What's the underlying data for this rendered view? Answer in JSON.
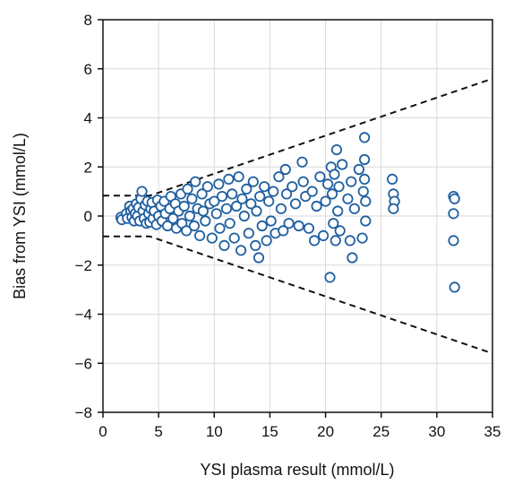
{
  "chart_data": {
    "type": "scatter",
    "title": "",
    "xlabel": "YSI plasma result (mmol/L)",
    "ylabel": "Bias from YSI (mmol/L)",
    "xlim": [
      0,
      35
    ],
    "ylim": [
      -8,
      8
    ],
    "x_ticks": [
      0,
      5,
      10,
      15,
      20,
      25,
      30,
      35
    ],
    "y_ticks": [
      -8,
      -6,
      -4,
      -2,
      0,
      2,
      4,
      6,
      8
    ],
    "x_tick_labels": [
      "0",
      "5",
      "10",
      "15",
      "20",
      "25",
      "30",
      "35"
    ],
    "y_tick_labels": [
      "−8",
      "−6",
      "−4",
      "−2",
      "0",
      "2",
      "4",
      "6",
      "8"
    ],
    "grid": true,
    "colors": {
      "marker_edge": "#1f5fa0",
      "marker_fill": "#ffffff",
      "grid": "#d9d9d9",
      "limit_line": "#111111",
      "axis": "#111111"
    },
    "limit_lines": {
      "style": "dashed",
      "upper": [
        [
          0,
          0.83
        ],
        [
          4.2,
          0.83
        ],
        [
          35,
          5.6
        ]
      ],
      "lower": [
        [
          0,
          -0.83
        ],
        [
          4.2,
          -0.83
        ],
        [
          35,
          -5.6
        ]
      ]
    },
    "series": [
      {
        "marker": "open-circle",
        "points": [
          [
            1.6,
            -0.05
          ],
          [
            1.7,
            -0.15
          ],
          [
            2.1,
            0.1
          ],
          [
            2.2,
            -0.1
          ],
          [
            2.4,
            0.4
          ],
          [
            2.5,
            0.2
          ],
          [
            2.6,
            -0.05
          ],
          [
            2.7,
            0.3
          ],
          [
            2.8,
            -0.2
          ],
          [
            2.9,
            0.1
          ],
          [
            3.0,
            0.5
          ],
          [
            3.1,
            0.0
          ],
          [
            3.2,
            0.35
          ],
          [
            3.3,
            -0.2
          ],
          [
            3.4,
            0.7
          ],
          [
            3.5,
            1.0
          ],
          [
            3.6,
            0.2
          ],
          [
            3.7,
            -0.1
          ],
          [
            3.8,
            0.45
          ],
          [
            3.9,
            -0.3
          ],
          [
            4.0,
            0.6
          ],
          [
            4.1,
            0.1
          ],
          [
            4.2,
            -0.25
          ],
          [
            4.3,
            0.3
          ],
          [
            4.4,
            0.55
          ],
          [
            4.5,
            -0.1
          ],
          [
            4.6,
            0.2
          ],
          [
            4.8,
            -0.35
          ],
          [
            4.9,
            0.65
          ],
          [
            5.0,
            0.0
          ],
          [
            5.2,
            0.4
          ],
          [
            5.3,
            -0.2
          ],
          [
            5.5,
            0.6
          ],
          [
            5.6,
            0.1
          ],
          [
            5.8,
            -0.4
          ],
          [
            6.0,
            0.3
          ],
          [
            6.1,
            0.8
          ],
          [
            6.3,
            -0.1
          ],
          [
            6.5,
            0.5
          ],
          [
            6.6,
            -0.5
          ],
          [
            6.8,
            0.2
          ],
          [
            7.0,
            0.9
          ],
          [
            7.1,
            -0.3
          ],
          [
            7.3,
            0.4
          ],
          [
            7.5,
            -0.6
          ],
          [
            7.6,
            1.1
          ],
          [
            7.8,
            0.0
          ],
          [
            8.0,
            0.7
          ],
          [
            8.2,
            -0.4
          ],
          [
            8.3,
            1.4
          ],
          [
            8.5,
            0.3
          ],
          [
            8.7,
            -0.8
          ],
          [
            8.9,
            0.9
          ],
          [
            9.0,
            0.2
          ],
          [
            9.2,
            -0.2
          ],
          [
            9.4,
            1.2
          ],
          [
            9.6,
            0.5
          ],
          [
            9.8,
            -0.9
          ],
          [
            10.0,
            0.6
          ],
          [
            10.2,
            0.1
          ],
          [
            10.4,
            1.3
          ],
          [
            10.5,
            -0.5
          ],
          [
            10.7,
            0.8
          ],
          [
            10.9,
            -1.2
          ],
          [
            11.1,
            0.3
          ],
          [
            11.3,
            1.5
          ],
          [
            11.4,
            -0.3
          ],
          [
            11.6,
            0.9
          ],
          [
            11.8,
            -0.9
          ],
          [
            12.0,
            0.4
          ],
          [
            12.2,
            1.6
          ],
          [
            12.4,
            -1.4
          ],
          [
            12.5,
            0.7
          ],
          [
            12.7,
            0.0
          ],
          [
            12.9,
            1.1
          ],
          [
            13.1,
            -0.7
          ],
          [
            13.3,
            0.5
          ],
          [
            13.5,
            1.4
          ],
          [
            13.7,
            -1.2
          ],
          [
            13.8,
            0.2
          ],
          [
            14.0,
            -1.7
          ],
          [
            14.1,
            0.8
          ],
          [
            14.3,
            -0.4
          ],
          [
            14.5,
            1.2
          ],
          [
            14.7,
            -1.0
          ],
          [
            14.9,
            0.6
          ],
          [
            15.1,
            -0.2
          ],
          [
            15.3,
            1.0
          ],
          [
            15.5,
            -0.7
          ],
          [
            15.8,
            1.6
          ],
          [
            16.0,
            0.3
          ],
          [
            16.2,
            -0.6
          ],
          [
            16.4,
            1.9
          ],
          [
            16.5,
            0.9
          ],
          [
            16.7,
            -0.3
          ],
          [
            17.0,
            1.2
          ],
          [
            17.3,
            0.5
          ],
          [
            17.6,
            -0.4
          ],
          [
            17.9,
            2.2
          ],
          [
            18.0,
            1.4
          ],
          [
            18.2,
            0.8
          ],
          [
            18.5,
            -0.5
          ],
          [
            18.8,
            1.0
          ],
          [
            19.0,
            -1.0
          ],
          [
            19.2,
            0.4
          ],
          [
            19.5,
            1.6
          ],
          [
            19.8,
            -0.8
          ],
          [
            20.0,
            0.6
          ],
          [
            20.2,
            1.3
          ],
          [
            20.4,
            -2.5
          ],
          [
            20.5,
            2.0
          ],
          [
            20.6,
            0.9
          ],
          [
            20.7,
            -0.3
          ],
          [
            20.8,
            1.7
          ],
          [
            20.9,
            -1.0
          ],
          [
            21.0,
            2.7
          ],
          [
            21.1,
            0.2
          ],
          [
            21.2,
            1.2
          ],
          [
            21.3,
            -0.6
          ],
          [
            21.5,
            2.1
          ],
          [
            22.0,
            0.7
          ],
          [
            22.2,
            -1.0
          ],
          [
            22.3,
            1.4
          ],
          [
            22.4,
            -1.7
          ],
          [
            22.6,
            0.3
          ],
          [
            23.0,
            1.9
          ],
          [
            23.3,
            -0.9
          ],
          [
            23.5,
            3.2
          ],
          [
            23.5,
            2.3
          ],
          [
            23.5,
            1.5
          ],
          [
            23.6,
            0.6
          ],
          [
            23.6,
            -0.2
          ],
          [
            23.4,
            1.0
          ],
          [
            26.0,
            1.5
          ],
          [
            26.1,
            0.9
          ],
          [
            26.2,
            0.6
          ],
          [
            26.1,
            0.3
          ],
          [
            31.5,
            0.8
          ],
          [
            31.6,
            0.7
          ],
          [
            31.5,
            0.1
          ],
          [
            31.5,
            -1.0
          ],
          [
            31.6,
            -2.9
          ]
        ]
      }
    ]
  }
}
